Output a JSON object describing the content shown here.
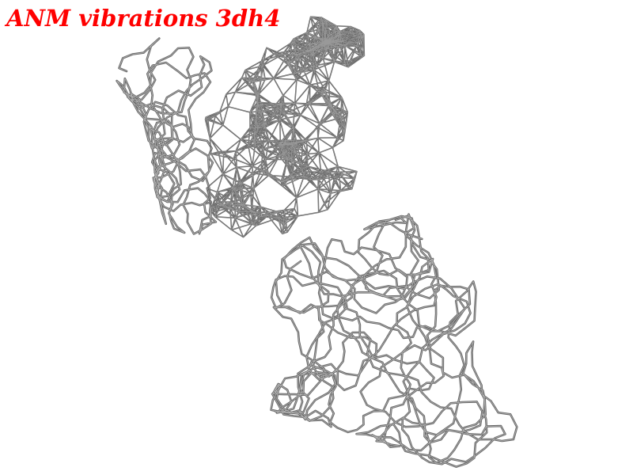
{
  "title": "ANM vibrations 3dh4",
  "colors": {
    "title": "#ff0000",
    "background": "#ffffff",
    "trace": "#666666",
    "network": "#5a5a5a"
  }
}
